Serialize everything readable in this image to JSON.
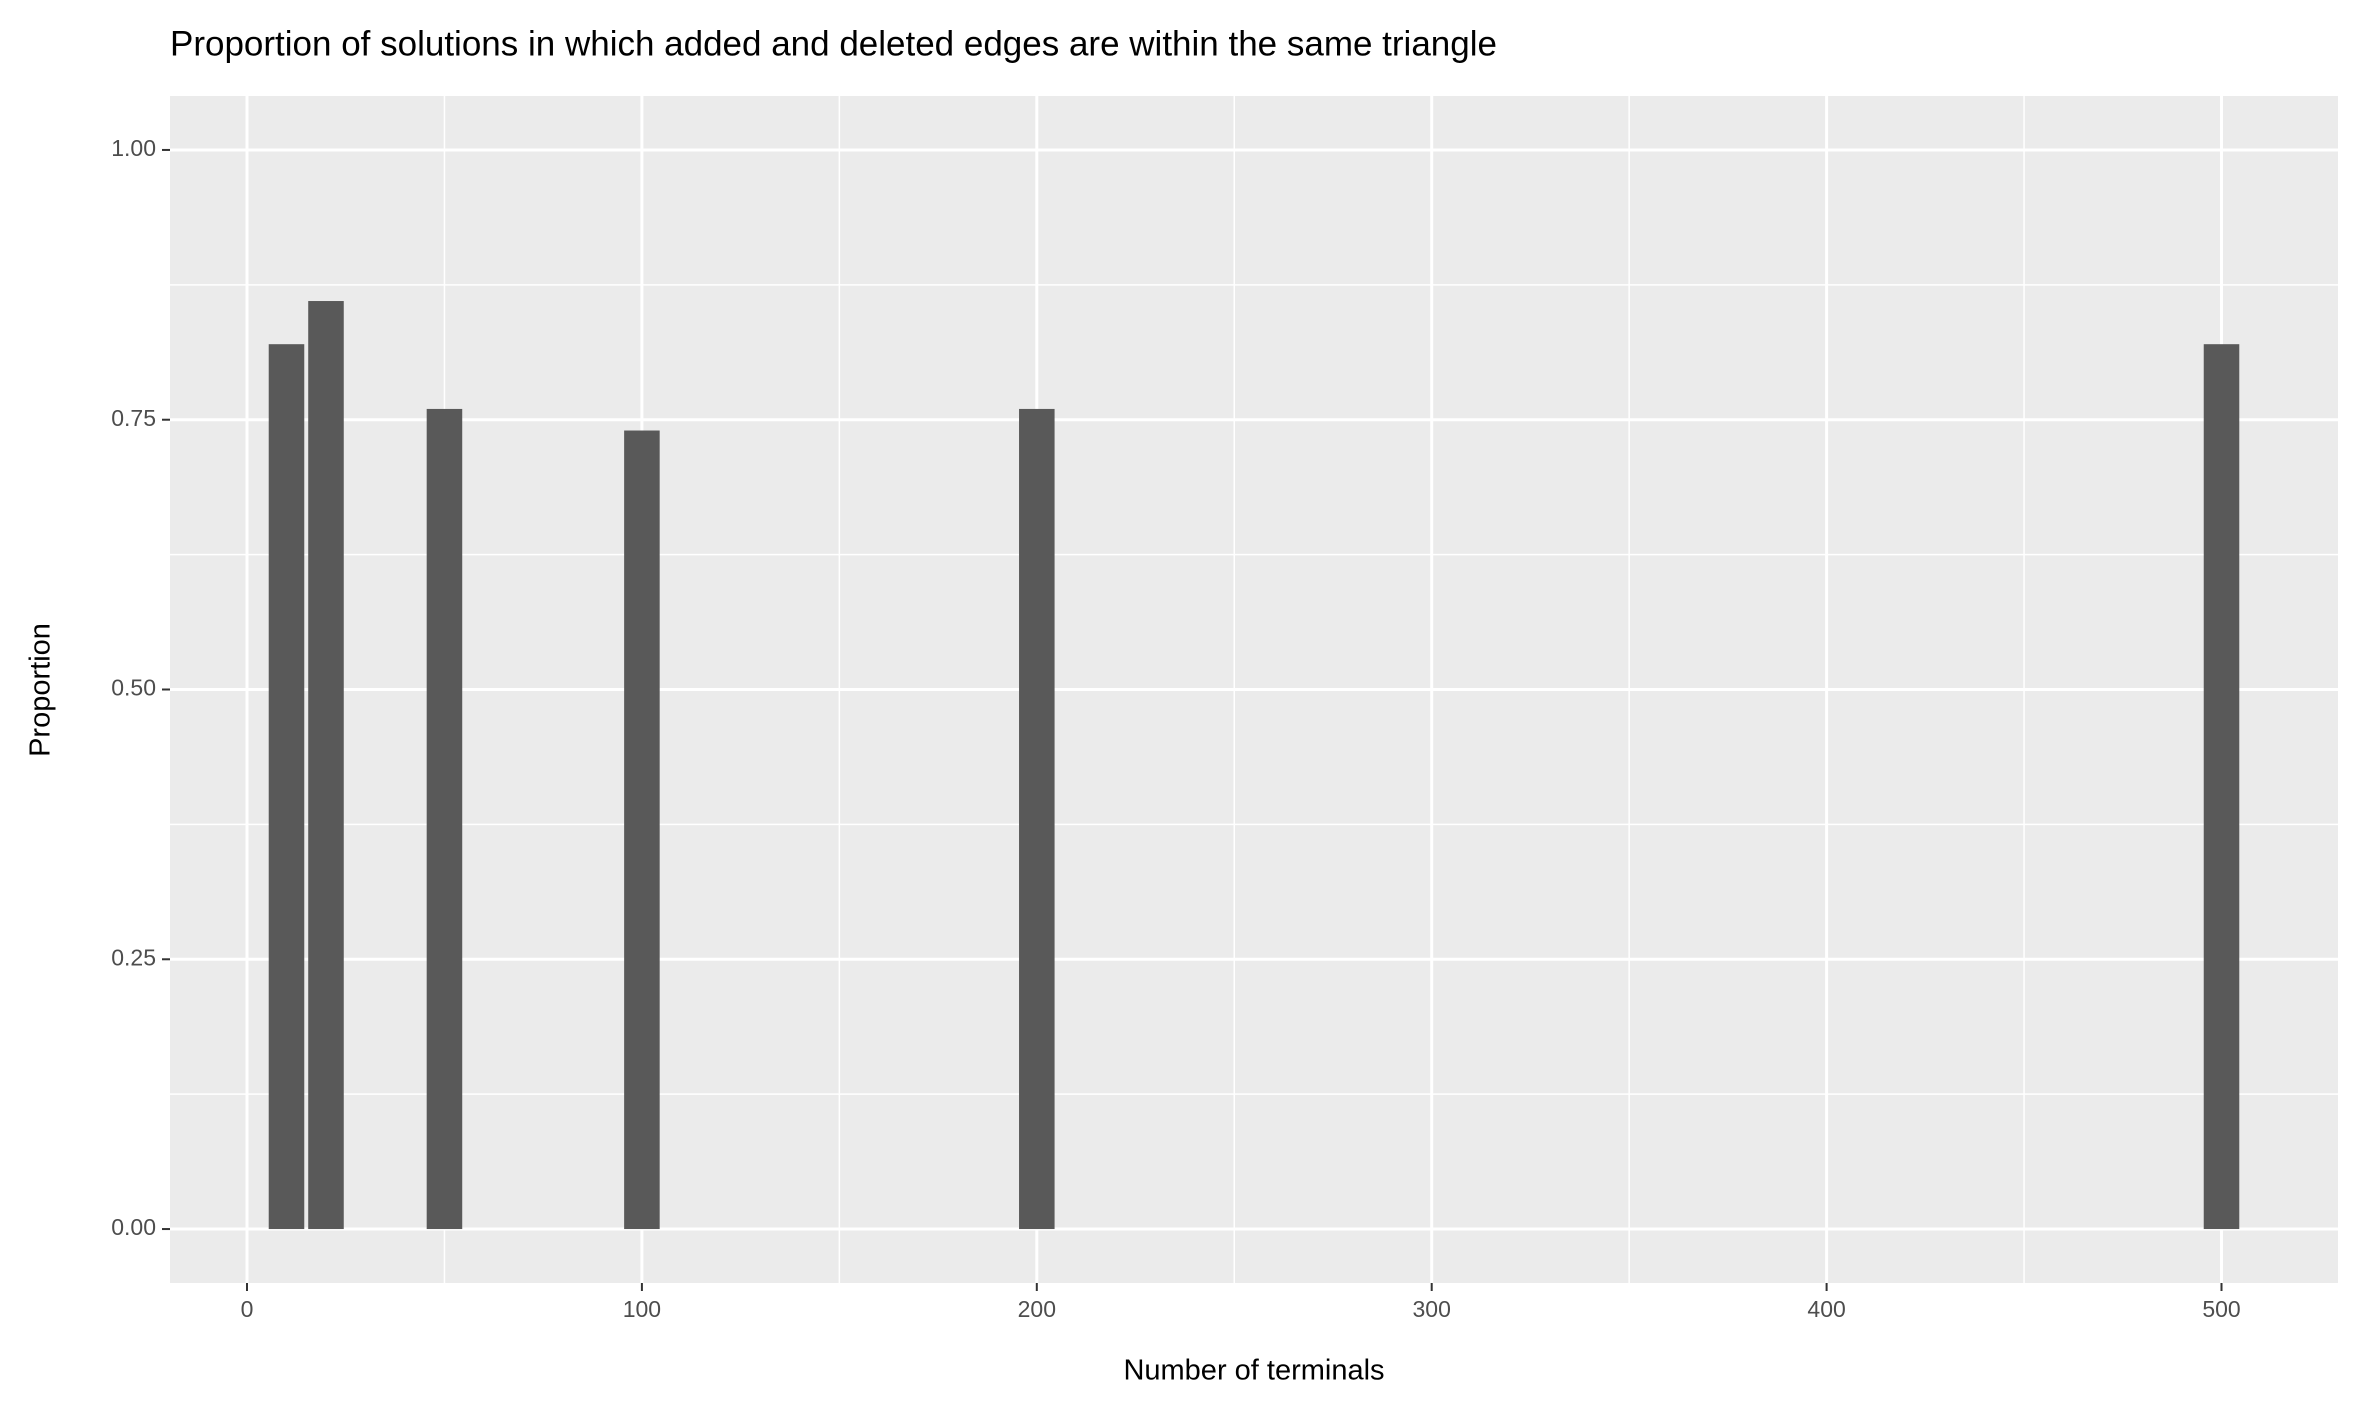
{
  "chart_data": {
    "type": "bar",
    "title": "Proportion of solutions in which added and deleted edges are within the same triangle",
    "x_label": "Number of terminals",
    "y_label": "Proportion",
    "x": [
      10,
      20,
      50,
      100,
      200,
      500
    ],
    "values": [
      0.82,
      0.86,
      0.76,
      0.74,
      0.76,
      0.82
    ],
    "bar_width": 9,
    "color": "#595959",
    "xlim": [
      -19.5,
      529.5
    ],
    "xticks": [
      0,
      100,
      200,
      300,
      400,
      500
    ],
    "x_minor_breaks": [
      50,
      150,
      250,
      350,
      450
    ],
    "ylim": [
      -0.05,
      1.05
    ],
    "yticks": [
      {
        "value": 0,
        "label": "0.00"
      },
      {
        "value": 0.25,
        "label": "0.25"
      },
      {
        "value": 0.5,
        "label": "0.50"
      },
      {
        "value": 0.75,
        "label": "0.75"
      },
      {
        "value": 1,
        "label": "1.00"
      }
    ],
    "y_minor_breaks": [
      0.125,
      0.375,
      0.625,
      0.875
    ],
    "grid": true
  }
}
